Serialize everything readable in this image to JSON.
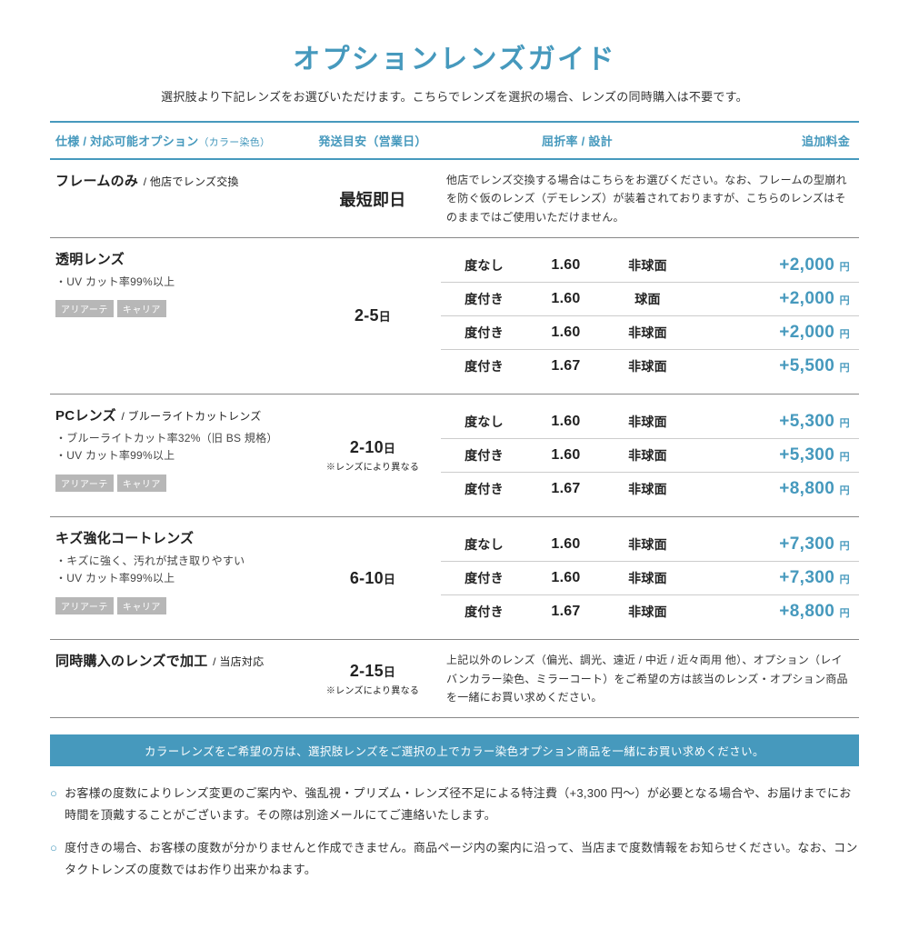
{
  "title": "オプションレンズガイド",
  "subtitle": "選択肢より下記レンズをお選びいただけます。こちらでレンズを選択の場合、レンズの同時購入は不要です。",
  "header": {
    "spec": "仕様 / 対応可能オプション",
    "spec_sub": "（カラー染色）",
    "ship": "発送目安（営業日）",
    "rd": "屈折率 / 設計",
    "fee": "追加料金"
  },
  "colors": {
    "accent": "#4699bd",
    "tag_bg": "#b7b7b7"
  },
  "sections": [
    {
      "title": "フレームのみ",
      "title_sub": " / 他店でレンズ交換",
      "bullets": [],
      "tags": [],
      "ship_main": "最短即日",
      "ship_unit": "",
      "ship_note": "",
      "desc": "他店でレンズ交換する場合はこちらをお選びください。なお、フレームの型崩れを防ぐ仮のレンズ（デモレンズ）が装着されておりますが、こちらのレンズはそのままではご使用いただけません。",
      "options": []
    },
    {
      "title": "透明レンズ",
      "title_sub": "",
      "bullets": [
        "・UV カット率99%以上"
      ],
      "tags": [
        "アリアーテ",
        "キャリア"
      ],
      "ship_main": "2-5",
      "ship_unit": "日",
      "ship_note": "",
      "desc": "",
      "options": [
        {
          "power": "度なし",
          "index": "1.60",
          "design": "非球面",
          "price": "+2,000"
        },
        {
          "power": "度付き",
          "index": "1.60",
          "design": "球面",
          "price": "+2,000"
        },
        {
          "power": "度付き",
          "index": "1.60",
          "design": "非球面",
          "price": "+2,000"
        },
        {
          "power": "度付き",
          "index": "1.67",
          "design": "非球面",
          "price": "+5,500"
        }
      ]
    },
    {
      "title": "PCレンズ",
      "title_sub": " / ブルーライトカットレンズ",
      "bullets": [
        "・ブルーライトカット率32%（旧 BS 規格）",
        "・UV カット率99%以上"
      ],
      "tags": [
        "アリアーテ",
        "キャリア"
      ],
      "ship_main": "2-10",
      "ship_unit": "日",
      "ship_note": "※レンズにより異なる",
      "desc": "",
      "options": [
        {
          "power": "度なし",
          "index": "1.60",
          "design": "非球面",
          "price": "+5,300"
        },
        {
          "power": "度付き",
          "index": "1.60",
          "design": "非球面",
          "price": "+5,300"
        },
        {
          "power": "度付き",
          "index": "1.67",
          "design": "非球面",
          "price": "+8,800"
        }
      ]
    },
    {
      "title": "キズ強化コートレンズ",
      "title_sub": "",
      "bullets": [
        "・キズに強く、汚れが拭き取りやすい",
        "・UV カット率99%以上"
      ],
      "tags": [
        "アリアーテ",
        "キャリア"
      ],
      "ship_main": "6-10",
      "ship_unit": "日",
      "ship_note": "",
      "desc": "",
      "options": [
        {
          "power": "度なし",
          "index": "1.60",
          "design": "非球面",
          "price": "+7,300"
        },
        {
          "power": "度付き",
          "index": "1.60",
          "design": "非球面",
          "price": "+7,300"
        },
        {
          "power": "度付き",
          "index": "1.67",
          "design": "非球面",
          "price": "+8,800"
        }
      ]
    },
    {
      "title": "同時購入のレンズで加工",
      "title_sub": " / 当店対応",
      "bullets": [],
      "tags": [],
      "ship_main": "2-15",
      "ship_unit": "日",
      "ship_note": "※レンズにより異なる",
      "desc": "上記以外のレンズ（偏光、調光、遠近 / 中近 / 近々両用 他）、オプション（レイバンカラー染色、ミラーコート）をご希望の方は該当のレンズ・オプション商品を一緒にお買い求めください。",
      "options": []
    }
  ],
  "banner": "カラーレンズをご希望の方は、選択肢レンズをご選択の上でカラー染色オプション商品を一緒にお買い求めください。",
  "notes": [
    "お客様の度数によりレンズ変更のご案内や、強乱視・プリズム・レンズ径不足による特注費（+3,300 円〜）が必要となる場合や、お届けまでにお時間を頂戴することがございます。その際は別途メールにてご連絡いたします。",
    "度付きの場合、お客様の度数が分かりませんと作成できません。商品ページ内の案内に沿って、当店まで度数情報をお知らせください。なお、コンタクトレンズの度数ではお作り出来かねます。"
  ],
  "yen_label": "円"
}
